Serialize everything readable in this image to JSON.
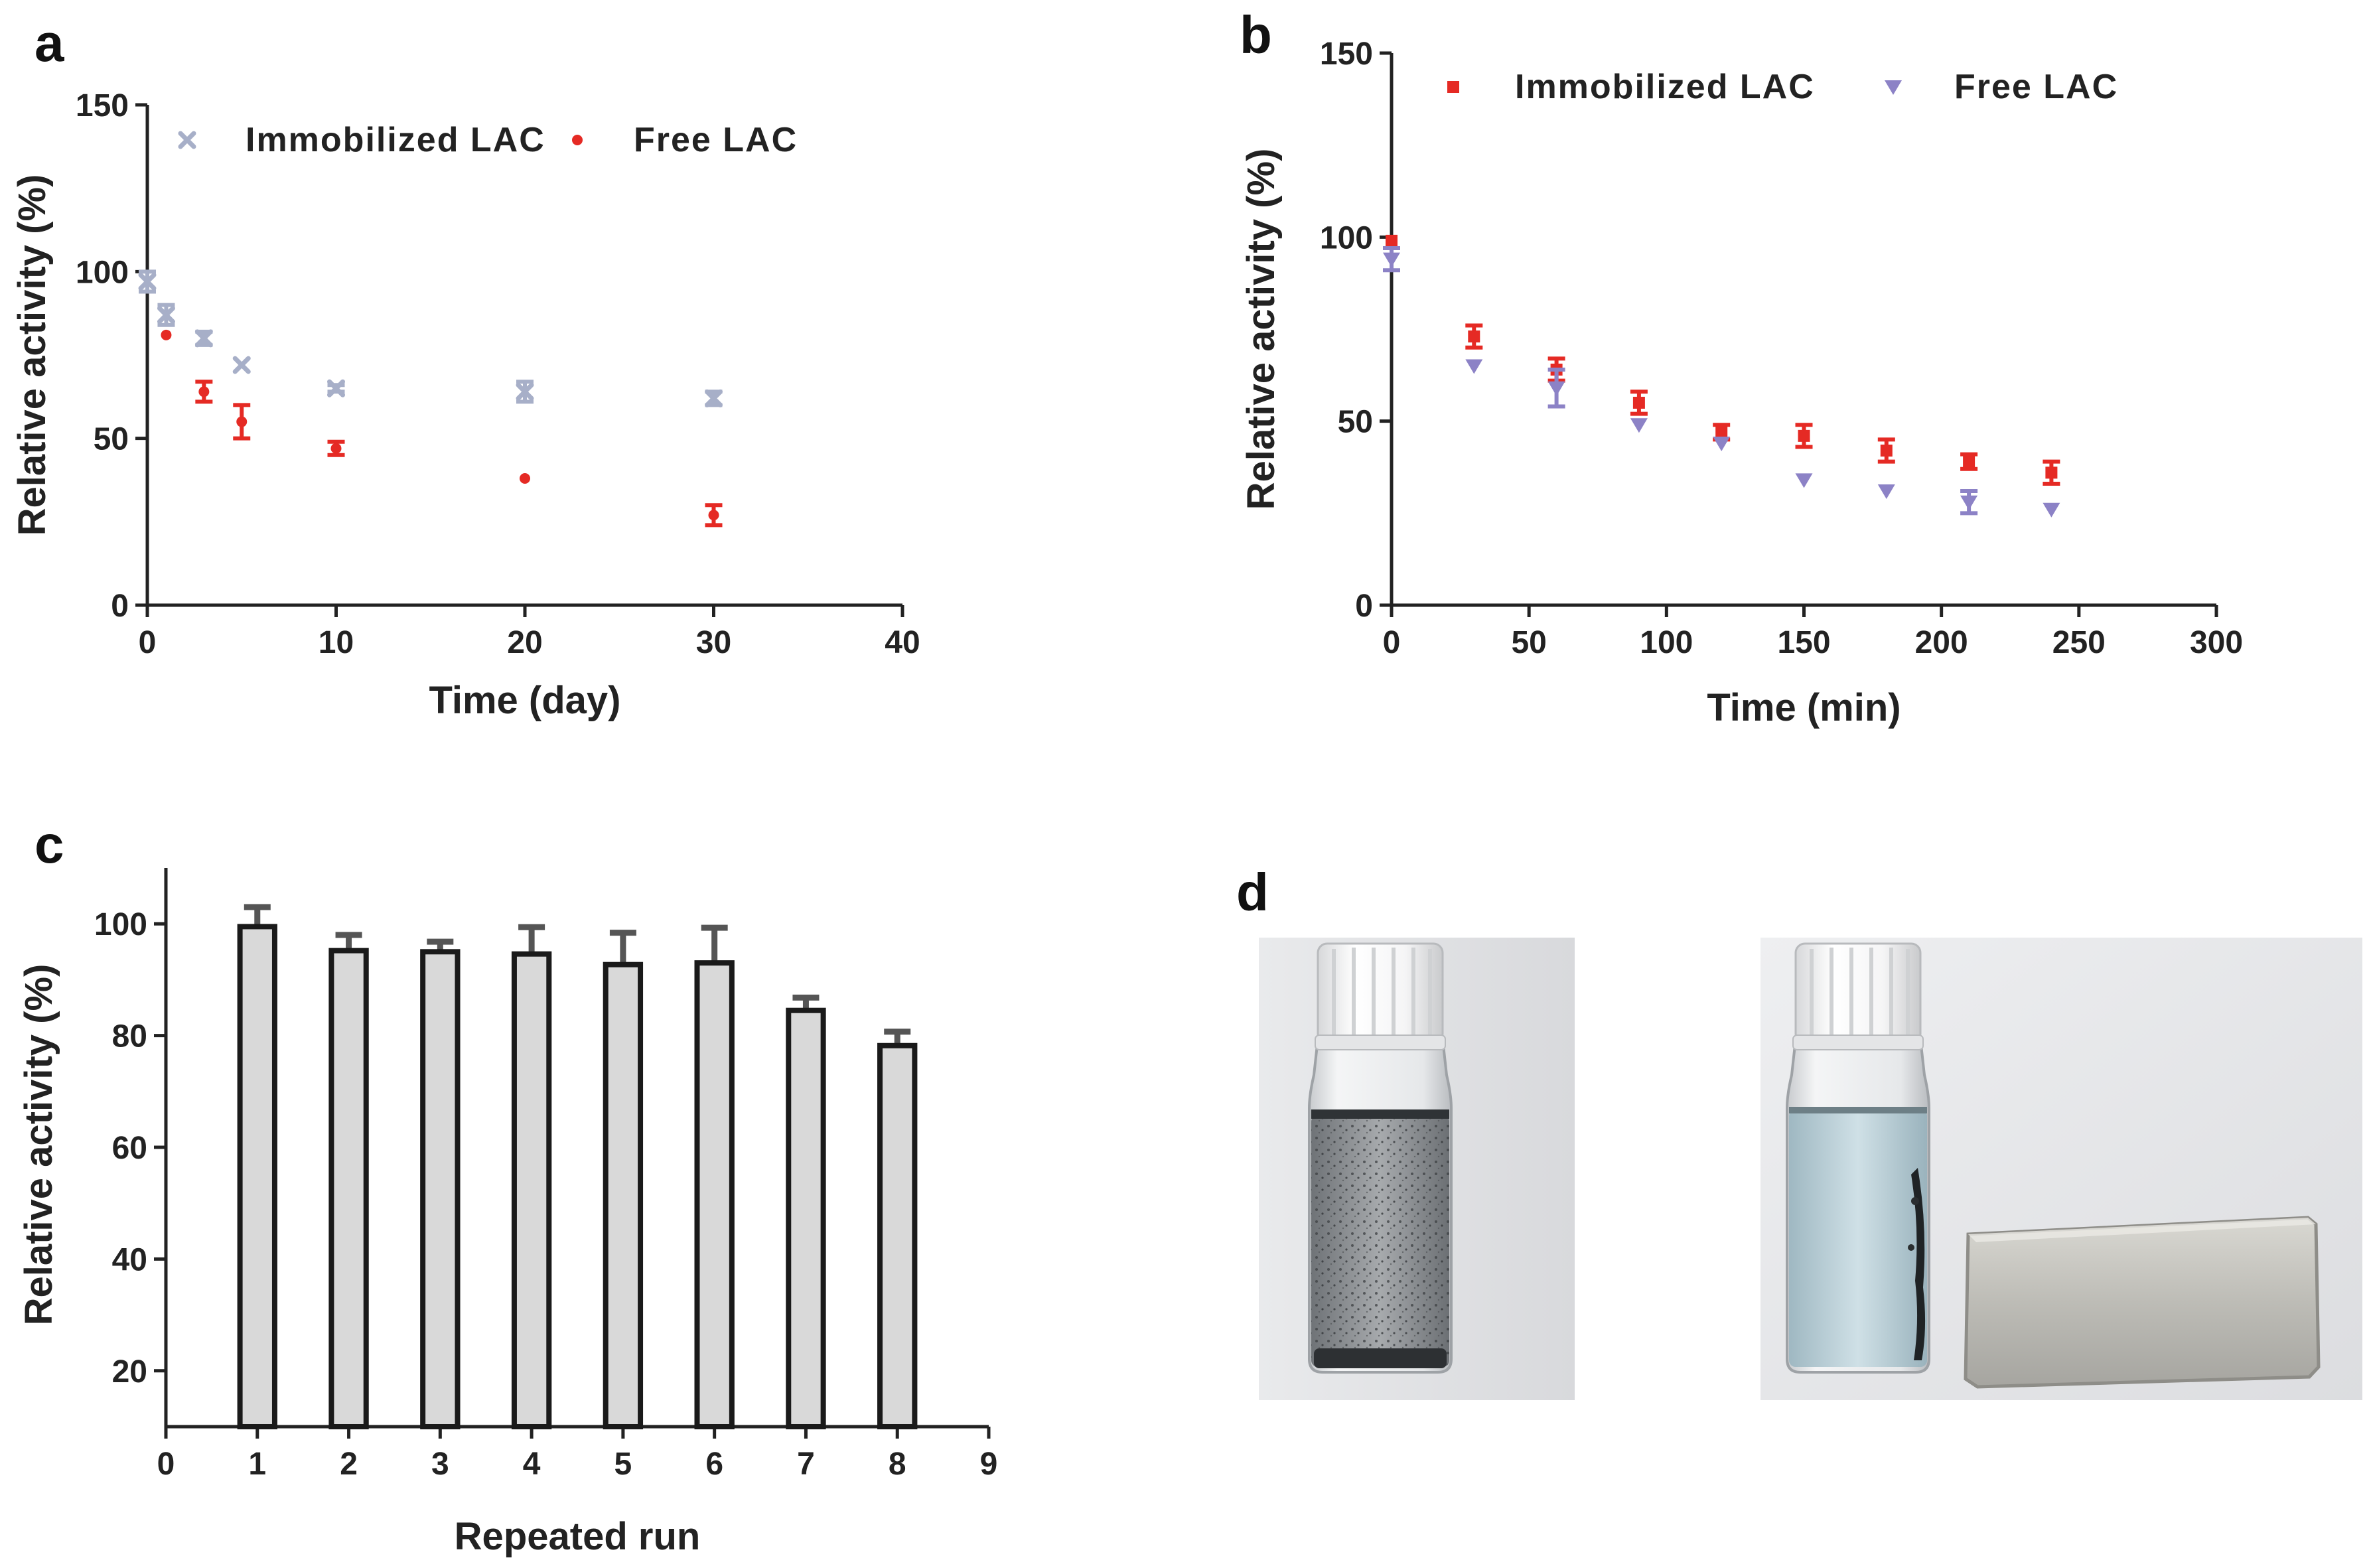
{
  "panels": {
    "a": "a",
    "b": "b",
    "c": "c",
    "d": "d"
  },
  "colors": {
    "red": "#e52a24",
    "grey_blue": "#a7afc8",
    "purple": "#8c82c6",
    "bar_fill": "#d9d9d9",
    "axis": "#222222"
  },
  "chart_data": [
    {
      "id": "a",
      "type": "scatter",
      "title": "",
      "xlabel": "Time (day)",
      "ylabel": "Relative activity (%)",
      "xlim": [
        0,
        40
      ],
      "ylim": [
        0,
        150
      ],
      "xticks": [
        0,
        10,
        20,
        30,
        40
      ],
      "yticks": [
        0,
        50,
        100,
        150
      ],
      "legend_position": "top",
      "series": [
        {
          "name": "Immobilized  LAC",
          "color": "#a7afc8",
          "marker": "x",
          "x": [
            0,
            1,
            3,
            5,
            10,
            20,
            30
          ],
          "y": [
            97,
            87,
            80,
            72,
            65,
            64,
            62
          ],
          "err": [
            3,
            3,
            2,
            0,
            1,
            3,
            2
          ]
        },
        {
          "name": "Free LAC",
          "color": "#e52a24",
          "marker": "circle",
          "x": [
            1,
            3,
            5,
            10,
            20,
            30
          ],
          "y": [
            81,
            64,
            55,
            47,
            38,
            27
          ],
          "err": [
            0,
            3,
            5,
            2,
            0,
            3
          ]
        }
      ]
    },
    {
      "id": "b",
      "type": "scatter",
      "title": "",
      "xlabel": "Time (min)",
      "ylabel": "Relative activity (%)",
      "xlim": [
        0,
        300
      ],
      "ylim": [
        0,
        150
      ],
      "xticks": [
        0,
        50,
        100,
        150,
        200,
        250,
        300
      ],
      "yticks": [
        0,
        50,
        100,
        150
      ],
      "legend_position": "top",
      "series": [
        {
          "name": "Immobilized LAC",
          "color": "#e52a24",
          "marker": "square",
          "x": [
            0,
            30,
            60,
            90,
            120,
            150,
            180,
            210,
            240
          ],
          "y": [
            99,
            73,
            64,
            55,
            47,
            46,
            42,
            39,
            36
          ],
          "err": [
            0,
            3,
            3,
            3,
            2,
            3,
            3,
            2,
            3
          ]
        },
        {
          "name": "Free LAC",
          "color": "#8c82c6",
          "marker": "triangle-down",
          "x": [
            0,
            30,
            60,
            90,
            120,
            150,
            180,
            210,
            240
          ],
          "y": [
            94,
            65,
            59,
            49,
            44,
            34,
            31,
            28,
            26
          ],
          "err": [
            3,
            0,
            5,
            0,
            0,
            0,
            0,
            3,
            0
          ]
        }
      ]
    },
    {
      "id": "c",
      "type": "bar",
      "title": "",
      "xlabel": "Repeated run",
      "ylabel": "Relative activity (%)",
      "xlim": [
        0,
        9
      ],
      "ylim": [
        10,
        110
      ],
      "xticks": [
        0,
        1,
        2,
        3,
        4,
        5,
        6,
        7,
        8,
        9
      ],
      "yticks": [
        20,
        40,
        60,
        80,
        100
      ],
      "categories": [
        1,
        2,
        3,
        4,
        5,
        6,
        7,
        8
      ],
      "values": [
        99.5,
        95.2,
        95,
        94.6,
        92.7,
        93,
        84.5,
        78.2
      ],
      "err": [
        3.5,
        2.8,
        1.8,
        4.8,
        5.7,
        6.3,
        2.3,
        2.5
      ]
    }
  ]
}
